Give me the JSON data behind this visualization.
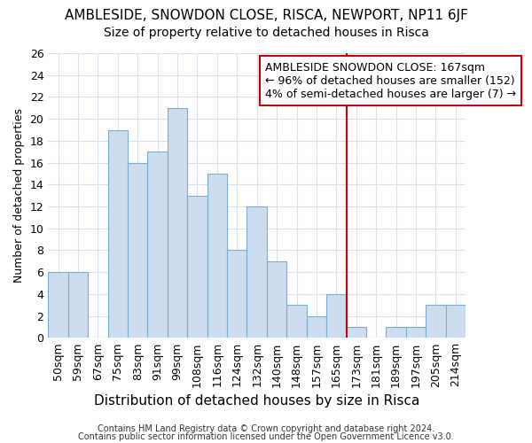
{
  "title": "AMBLESIDE, SNOWDON CLOSE, RISCA, NEWPORT, NP11 6JF",
  "subtitle": "Size of property relative to detached houses in Risca",
  "xlabel": "Distribution of detached houses by size in Risca",
  "ylabel": "Number of detached properties",
  "categories": [
    "50sqm",
    "59sqm",
    "67sqm",
    "75sqm",
    "83sqm",
    "91sqm",
    "99sqm",
    "108sqm",
    "116sqm",
    "124sqm",
    "132sqm",
    "140sqm",
    "148sqm",
    "157sqm",
    "165sqm",
    "173sqm",
    "181sqm",
    "189sqm",
    "197sqm",
    "205sqm",
    "214sqm"
  ],
  "values": [
    6,
    6,
    0,
    19,
    16,
    17,
    21,
    13,
    15,
    8,
    12,
    7,
    3,
    2,
    4,
    1,
    0,
    1,
    1,
    3,
    3
  ],
  "bar_color": "#ccddef",
  "bar_edge_color": "#7aadcc",
  "background_color": "#ffffff",
  "grid_color": "#ddddee",
  "vline_x_index": 14,
  "vline_color": "#cc0000",
  "annotation_line1": "AMBLESIDE SNOWDON CLOSE: 167sqm",
  "annotation_line2": "← 96% of detached houses are smaller (152)",
  "annotation_line3": "4% of semi-detached houses are larger (7) →",
  "annotation_box_color": "#ffffff",
  "annotation_box_edge_color": "#cc0000",
  "ylim": [
    0,
    26
  ],
  "yticks": [
    0,
    2,
    4,
    6,
    8,
    10,
    12,
    14,
    16,
    18,
    20,
    22,
    24,
    26
  ],
  "footer_line1": "Contains HM Land Registry data © Crown copyright and database right 2024.",
  "footer_line2": "Contains public sector information licensed under the Open Government Licence v3.0.",
  "title_fontsize": 11,
  "subtitle_fontsize": 10,
  "xlabel_fontsize": 11,
  "ylabel_fontsize": 9,
  "tick_fontsize": 9,
  "annotation_fontsize": 9,
  "footer_fontsize": 7
}
